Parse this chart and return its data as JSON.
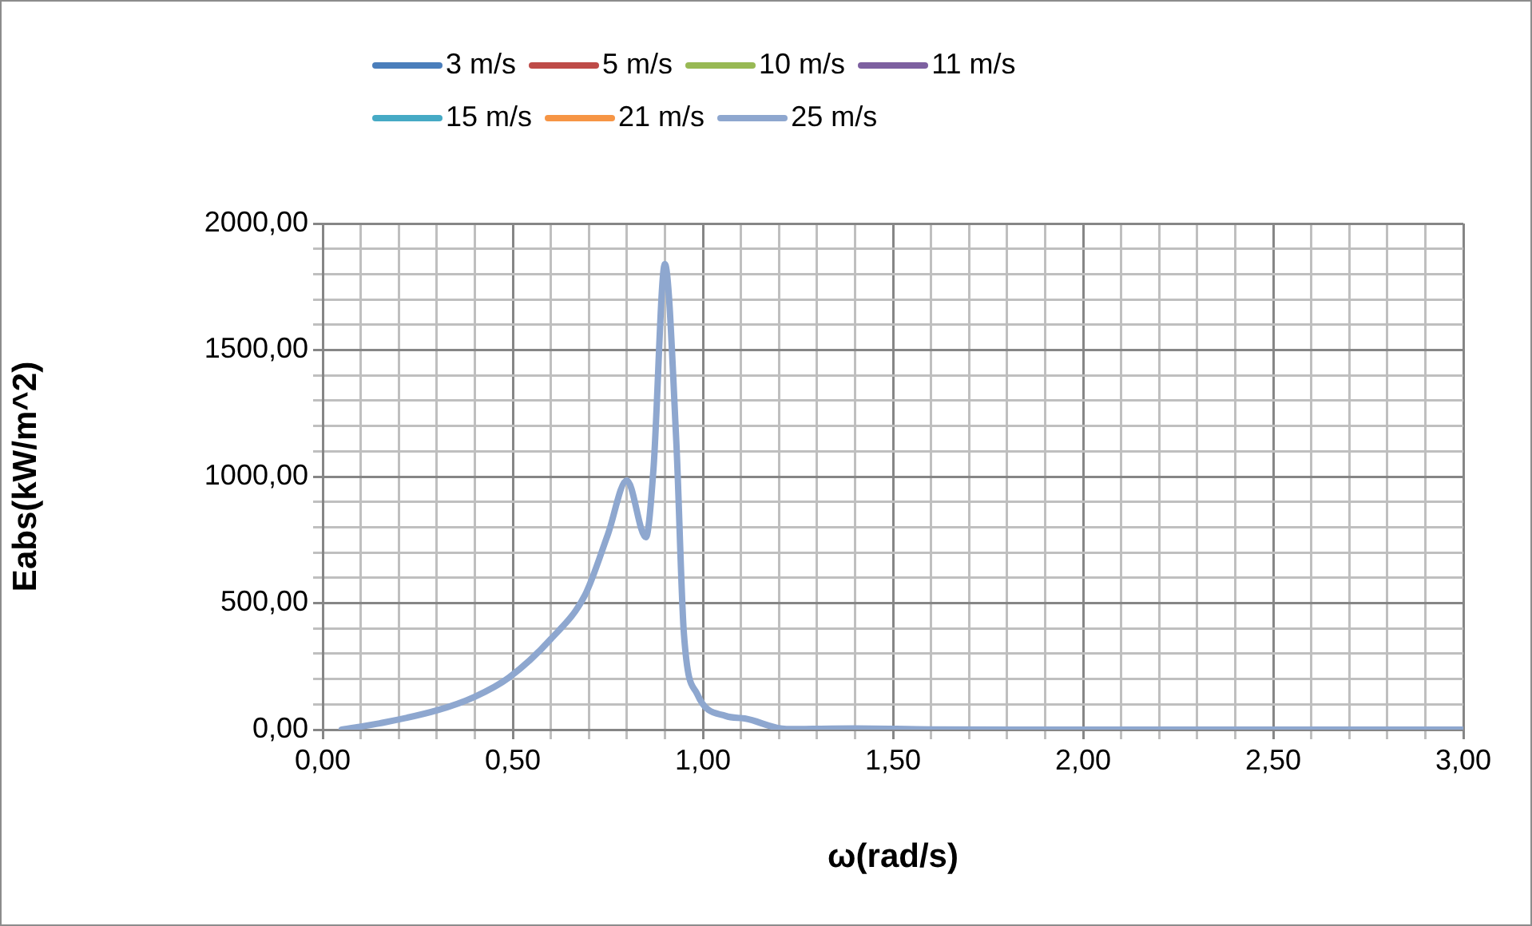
{
  "chart_data": {
    "type": "line",
    "xlabel": "ω(rad/s)",
    "ylabel": "Eabs(kW/m^2)",
    "x": [
      0.05,
      0.15,
      0.3,
      0.4,
      0.49,
      0.6,
      0.69,
      0.75,
      0.8,
      0.85,
      0.87,
      0.9,
      0.93,
      0.95,
      0.985,
      1.06,
      1.11,
      1.22,
      1.4,
      1.6,
      2.0,
      2.5,
      3.0
    ],
    "series": [
      {
        "name": "3 m/s",
        "color": "#4a7ebb",
        "values": [
          null,
          null,
          null,
          null,
          null,
          null,
          null,
          null,
          null,
          null,
          null,
          null,
          null,
          null,
          null,
          null,
          null,
          null,
          null,
          null,
          null,
          null,
          null
        ]
      },
      {
        "name": "5 m/s",
        "color": "#be4b48",
        "values": [
          null,
          null,
          null,
          null,
          null,
          null,
          null,
          null,
          null,
          null,
          null,
          null,
          null,
          null,
          null,
          null,
          null,
          null,
          null,
          null,
          null,
          null,
          null
        ]
      },
      {
        "name": "10 m/s",
        "color": "#98b954",
        "values": [
          null,
          null,
          null,
          null,
          null,
          null,
          null,
          null,
          null,
          null,
          null,
          null,
          null,
          null,
          null,
          null,
          null,
          null,
          null,
          null,
          null,
          null,
          null
        ]
      },
      {
        "name": "11 m/s",
        "color": "#7d60a0",
        "values": [
          null,
          null,
          null,
          null,
          null,
          null,
          null,
          null,
          null,
          null,
          null,
          null,
          null,
          null,
          null,
          null,
          null,
          null,
          null,
          null,
          null,
          null,
          null
        ]
      },
      {
        "name": "15 m/s",
        "color": "#46aac5",
        "values": [
          null,
          null,
          null,
          null,
          null,
          null,
          null,
          null,
          null,
          null,
          null,
          null,
          null,
          null,
          null,
          null,
          null,
          null,
          null,
          null,
          null,
          null,
          null
        ]
      },
      {
        "name": "21 m/s",
        "color": "#f69545",
        "values": [
          null,
          null,
          null,
          null,
          null,
          null,
          null,
          null,
          null,
          null,
          null,
          null,
          null,
          null,
          null,
          null,
          null,
          null,
          null,
          null,
          null,
          null,
          null
        ]
      },
      {
        "name": "25 m/s",
        "color": "#8ea7cf",
        "values": [
          0,
          25,
          76,
          130,
          206,
          358,
          532,
          771,
          985,
          760,
          1030,
          1840,
          1140,
          380,
          141,
          54,
          44,
          2,
          5,
          1,
          0,
          0,
          0
        ]
      }
    ],
    "xlim": [
      0,
      3
    ],
    "xticks": [
      {
        "value": 0,
        "label": "0,00"
      },
      {
        "value": 0.1,
        "label": null
      },
      {
        "value": 0.2,
        "label": null
      },
      {
        "value": 0.3,
        "label": null
      },
      {
        "value": 0.4,
        "label": null
      },
      {
        "value": 0.5,
        "label": "0,50"
      },
      {
        "value": 0.6,
        "label": null
      },
      {
        "value": 0.7,
        "label": null
      },
      {
        "value": 0.8,
        "label": null
      },
      {
        "value": 0.9,
        "label": null
      },
      {
        "value": 1,
        "label": "1,00"
      },
      {
        "value": 1.1,
        "label": null
      },
      {
        "value": 1.2,
        "label": null
      },
      {
        "value": 1.3,
        "label": null
      },
      {
        "value": 1.4,
        "label": null
      },
      {
        "value": 1.5,
        "label": "1,50"
      },
      {
        "value": 1.6,
        "label": null
      },
      {
        "value": 1.7,
        "label": null
      },
      {
        "value": 1.8,
        "label": null
      },
      {
        "value": 1.9,
        "label": null
      },
      {
        "value": 2,
        "label": "2,00"
      },
      {
        "value": 2.1,
        "label": null
      },
      {
        "value": 2.2,
        "label": null
      },
      {
        "value": 2.3,
        "label": null
      },
      {
        "value": 2.4,
        "label": null
      },
      {
        "value": 2.5,
        "label": "2,50"
      },
      {
        "value": 2.6,
        "label": null
      },
      {
        "value": 2.7,
        "label": null
      },
      {
        "value": 2.8,
        "label": null
      },
      {
        "value": 2.9,
        "label": null
      },
      {
        "value": 3,
        "label": "3,00"
      }
    ],
    "ylim": [
      0,
      2000
    ],
    "yticks": [
      {
        "value": 0,
        "label": "0,00"
      },
      {
        "value": 100,
        "label": null
      },
      {
        "value": 200,
        "label": null
      },
      {
        "value": 300,
        "label": null
      },
      {
        "value": 400,
        "label": null
      },
      {
        "value": 500,
        "label": "500,00"
      },
      {
        "value": 600,
        "label": null
      },
      {
        "value": 700,
        "label": null
      },
      {
        "value": 800,
        "label": null
      },
      {
        "value": 900,
        "label": null
      },
      {
        "value": 1000,
        "label": "1000,00"
      },
      {
        "value": 1100,
        "label": null
      },
      {
        "value": 1200,
        "label": null
      },
      {
        "value": 1300,
        "label": null
      },
      {
        "value": 1400,
        "label": null
      },
      {
        "value": 1500,
        "label": "1500,00"
      },
      {
        "value": 1600,
        "label": null
      },
      {
        "value": 1700,
        "label": null
      },
      {
        "value": 1800,
        "label": null
      },
      {
        "value": 1900,
        "label": null
      },
      {
        "value": 2000,
        "label": "2000,00"
      }
    ],
    "grid": true,
    "legend": "top",
    "marker": "none",
    "line_style": "solid"
  }
}
